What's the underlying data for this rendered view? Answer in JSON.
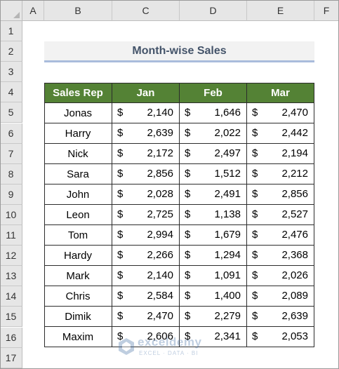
{
  "columns": [
    "A",
    "B",
    "C",
    "D",
    "E",
    "F"
  ],
  "rows": [
    "1",
    "2",
    "3",
    "4",
    "5",
    "6",
    "7",
    "8",
    "9",
    "10",
    "11",
    "12",
    "13",
    "14",
    "15",
    "16",
    "17"
  ],
  "title": "Month-wise Sales",
  "table": {
    "headers": [
      "Sales Rep",
      "Jan",
      "Feb",
      "Mar"
    ],
    "currency_symbol": "$",
    "rows": [
      {
        "name": "Jonas",
        "jan": "2,140",
        "feb": "1,646",
        "mar": "2,470"
      },
      {
        "name": "Harry",
        "jan": "2,639",
        "feb": "2,022",
        "mar": "2,442"
      },
      {
        "name": "Nick",
        "jan": "2,172",
        "feb": "2,497",
        "mar": "2,194"
      },
      {
        "name": "Sara",
        "jan": "2,856",
        "feb": "1,512",
        "mar": "2,212"
      },
      {
        "name": "John",
        "jan": "2,028",
        "feb": "2,491",
        "mar": "2,856"
      },
      {
        "name": "Leon",
        "jan": "2,725",
        "feb": "1,138",
        "mar": "2,527"
      },
      {
        "name": "Tom",
        "jan": "2,994",
        "feb": "1,679",
        "mar": "2,476"
      },
      {
        "name": "Hardy",
        "jan": "2,266",
        "feb": "1,294",
        "mar": "2,368"
      },
      {
        "name": "Mark",
        "jan": "2,140",
        "feb": "1,091",
        "mar": "2,026"
      },
      {
        "name": "Chris",
        "jan": "2,584",
        "feb": "1,400",
        "mar": "2,089"
      },
      {
        "name": "Dimik",
        "jan": "2,470",
        "feb": "2,279",
        "mar": "2,639"
      },
      {
        "name": "Maxim",
        "jan": "2,606",
        "feb": "2,341",
        "mar": "2,053"
      }
    ]
  },
  "watermark": {
    "name": "exceldemy",
    "tagline": "EXCEL · DATA · BI",
    "icon": "exceldemy-logo-icon"
  },
  "colors": {
    "header_fill": "#548235",
    "header_text": "#ffffff",
    "title_text": "#44546a",
    "title_underline": "#a9bcdc",
    "title_fill": "#f2f2f2"
  }
}
